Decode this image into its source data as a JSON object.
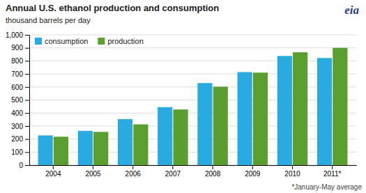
{
  "chart_data": {
    "type": "bar",
    "title": "Annual U.S. ethanol production and consumption",
    "subtitle": "thousand barrels per day",
    "annotations": [
      "*January-May average",
      "eia"
    ],
    "categories": [
      "2004",
      "2005",
      "2006",
      "2007",
      "2008",
      "2009",
      "2010",
      "2011*"
    ],
    "series": [
      {
        "name": "consumption",
        "color": "#29ABE2",
        "values": [
          228,
          263,
          353,
          445,
          630,
          714,
          838,
          822
        ]
      },
      {
        "name": "production",
        "color": "#5A9E2F",
        "values": [
          218,
          255,
          313,
          427,
          602,
          710,
          866,
          900
        ]
      }
    ],
    "ylim": [
      0,
      1000
    ],
    "yticks": [
      0,
      100,
      200,
      300,
      400,
      500,
      600,
      700,
      800,
      900,
      {
        "value": 1000,
        "label": "1,000"
      }
    ],
    "grid": true,
    "legend": "upper left"
  }
}
